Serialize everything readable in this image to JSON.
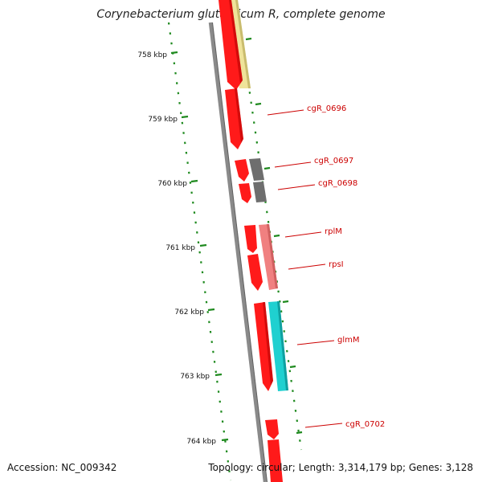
{
  "title": "Corynebacterium glutamicum R, complete genome",
  "footer": {
    "accession": "Accession: NC_009342",
    "topology": "Topology: circular; Length: 3,314,179 bp; Genes: 3,128"
  },
  "colors": {
    "backbone": "#8a8a8a",
    "cds_red": "#ff1a1a",
    "tick_green": "#1f8a1f",
    "label_red": "#cc0000",
    "feature_yellow": "#efe39a",
    "feature_gray": "#6e6e6e",
    "feature_pink": "#f08080",
    "feature_cyan": "#1fd0d0"
  },
  "ruler": {
    "unit": "kbp",
    "ticks": [
      "758 kbp",
      "759 kbp",
      "760 kbp",
      "761 kbp",
      "762 kbp",
      "763 kbp",
      "764 kbp"
    ]
  },
  "gene_labels": [
    "cgR_0696",
    "cgR_0697",
    "cgR_0698",
    "rplM",
    "rpsI",
    "glmM",
    "cgR_0702"
  ]
}
